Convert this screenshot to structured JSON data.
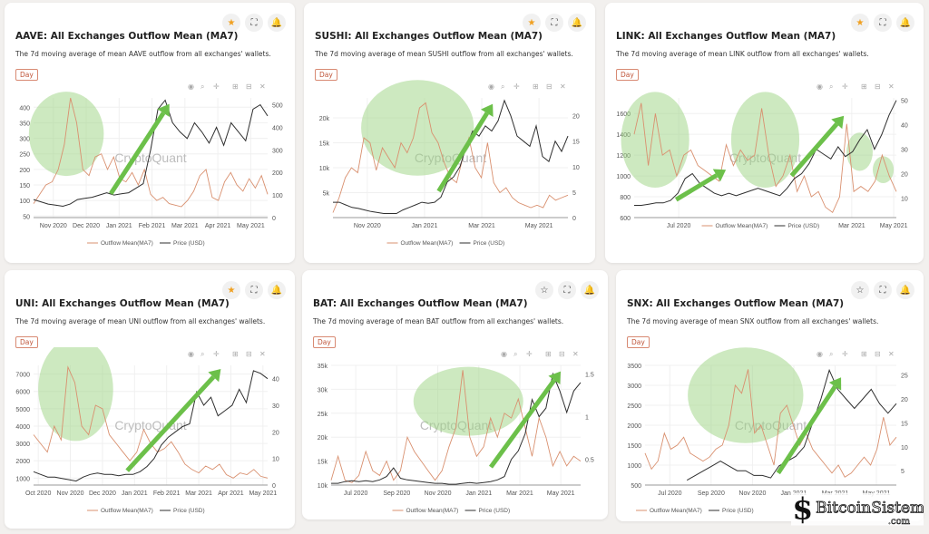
{
  "ui": {
    "card_icons": [
      "star-icon",
      "fullscreen-icon",
      "bell-icon"
    ],
    "plot_toolbar": [
      "camera-icon",
      "zoom-icon",
      "pan-icon",
      "zoom-in-icon",
      "zoom-out-icon",
      "reset-icon"
    ]
  },
  "colors": {
    "outflow": "#d9906f",
    "price": "#2f2f2f",
    "highlight": "#9bd482",
    "arrow": "#6cc04a",
    "star_active": "#f0a020"
  },
  "watermark": "CryptoQuant",
  "logo": {
    "name": "BitcoinSistemi",
    "suffix": ".com"
  },
  "chart_data": [
    {
      "type": "line",
      "title": "AAVE: All Exchanges Outflow Mean (MA7)",
      "subtitle": "The 7d moving average of mean AAVE outflow from all exchanges' wallets.",
      "period": "Day",
      "star_active": true,
      "legend": [
        "Outflow Mean(MA7)",
        "Price (USD)"
      ],
      "x_ticks": [
        "Nov 2020",
        "Dec 2020",
        "Jan 2021",
        "Feb 2021",
        "Mar 2021",
        "Apr 2021",
        "May 2021"
      ],
      "y_left_ticks": [
        50,
        100,
        150,
        200,
        250,
        300,
        350,
        400
      ],
      "ylim_left": [
        45,
        430
      ],
      "y_right_ticks": [
        0,
        100,
        200,
        300,
        400,
        500
      ],
      "ylim_right": [
        0,
        530
      ],
      "series": [
        {
          "name": "Outflow Mean(MA7)",
          "values": [
            90,
            120,
            150,
            160,
            200,
            280,
            430,
            350,
            200,
            180,
            240,
            250,
            200,
            240,
            170,
            160,
            190,
            150,
            200,
            120,
            100,
            110,
            90,
            85,
            80,
            100,
            130,
            180,
            200,
            110,
            100,
            160,
            190,
            150,
            130,
            170,
            140,
            180,
            120
          ]
        },
        {
          "name": "Price (USD)",
          "values": [
            80,
            70,
            60,
            55,
            50,
            60,
            80,
            85,
            90,
            100,
            110,
            100,
            105,
            110,
            130,
            150,
            300,
            480,
            520,
            420,
            380,
            350,
            420,
            380,
            330,
            400,
            320,
            420,
            380,
            340,
            480,
            500,
            450
          ]
        }
      ]
    },
    {
      "type": "line",
      "title": "SUSHI: All Exchanges Outflow Mean (MA7)",
      "subtitle": "The 7d moving average of mean SUSHI outflow from all exchanges' wallets.",
      "period": "Day",
      "star_active": true,
      "legend": [
        "Outflow Mean(MA7)",
        "Price (USD)"
      ],
      "x_ticks": [
        "Nov 2020",
        "Jan 2021",
        "Mar 2021",
        "May 2021"
      ],
      "y_left_ticks": [
        "5k",
        "10k",
        "15k",
        "20k"
      ],
      "y_left_values": [
        5000,
        10000,
        15000,
        20000
      ],
      "ylim_left": [
        0,
        24000
      ],
      "y_right_ticks": [
        0,
        5,
        10,
        15,
        20
      ],
      "ylim_right": [
        0,
        23.5
      ],
      "series": [
        {
          "name": "Outflow Mean(MA7)",
          "values": [
            1000,
            4000,
            8000,
            10000,
            9000,
            16000,
            15000,
            9500,
            14000,
            12000,
            10000,
            15000,
            13000,
            16000,
            22000,
            23000,
            17000,
            15000,
            11000,
            8000,
            7000,
            12000,
            16000,
            10000,
            8000,
            15000,
            7000,
            5000,
            6000,
            4000,
            3000,
            2500,
            2000,
            2500,
            2000,
            4500,
            3500,
            4000,
            4500
          ]
        },
        {
          "name": "Price (USD)",
          "values": [
            3,
            3,
            2.5,
            2,
            1.8,
            1.5,
            1.2,
            1,
            0.8,
            0.8,
            0.8,
            1.5,
            2,
            2.5,
            3,
            2.8,
            3,
            4,
            7,
            8,
            10,
            14,
            17,
            16,
            18,
            17,
            19,
            23,
            20,
            16,
            15,
            14,
            18,
            12,
            11,
            15,
            13,
            16
          ]
        }
      ]
    },
    {
      "type": "line",
      "title": "LINK: All Exchanges Outflow Mean (MA7)",
      "subtitle": "The 7d moving average of mean LINK outflow from all exchanges' wallets.",
      "period": "Day",
      "star_active": true,
      "legend": [
        "Outflow Mean(MA7)",
        "Price (USD)"
      ],
      "x_ticks": [
        "Jul 2020",
        "Mar 2021",
        "May 2021"
      ],
      "x_tick_pos": [
        0.17,
        0.83,
        0.99
      ],
      "y_left_ticks": [
        600,
        800,
        1000,
        1200,
        1400,
        1600
      ],
      "ylim_left": [
        600,
        1750
      ],
      "y_right_ticks": [
        10,
        20,
        30,
        40,
        50
      ],
      "ylim_right": [
        2,
        51
      ],
      "series": [
        {
          "name": "Outflow Mean(MA7)",
          "values": [
            1400,
            1700,
            1100,
            1600,
            1200,
            1250,
            1000,
            1200,
            1250,
            1100,
            1050,
            1000,
            950,
            1300,
            1100,
            1250,
            1150,
            1200,
            1650,
            1200,
            900,
            1000,
            1200,
            850,
            1000,
            800,
            850,
            700,
            650,
            800,
            1500,
            850,
            900,
            850,
            950,
            1200,
            1000,
            850
          ]
        },
        {
          "name": "Price (USD)",
          "values": [
            7,
            7,
            7.5,
            8,
            8,
            9,
            12,
            18,
            20,
            16,
            14,
            12,
            11,
            12,
            11,
            12,
            13,
            14,
            13,
            12,
            11,
            14,
            18,
            20,
            24,
            30,
            28,
            26,
            31,
            27,
            29,
            34,
            38,
            30,
            36,
            44,
            50
          ]
        }
      ]
    },
    {
      "type": "line",
      "title": "UNI: All Exchanges Outflow Mean (MA7)",
      "subtitle": "The 7d moving average of mean UNI outflow from all exchanges' wallets.",
      "period": "Day",
      "star_active": true,
      "legend": [
        "Outflow Mean(MA7)",
        "Price (USD)"
      ],
      "x_ticks": [
        "Oct 2020",
        "Nov 2020",
        "Dec 2020",
        "Jan 2021",
        "Feb 2021",
        "Mar 2021",
        "Apr 2021",
        "May 2021"
      ],
      "y_left_ticks": [
        1000,
        2000,
        3000,
        4000,
        5000,
        6000,
        7000
      ],
      "ylim_left": [
        600,
        7500
      ],
      "y_right_ticks": [
        0,
        10,
        20,
        30,
        40
      ],
      "ylim_right": [
        0,
        45
      ],
      "series": [
        {
          "name": "Outflow Mean(MA7)",
          "values": [
            3500,
            3000,
            2500,
            4000,
            3200,
            7400,
            6500,
            4000,
            3500,
            5200,
            5000,
            3500,
            3000,
            2500,
            2000,
            2500,
            3800,
            3000,
            2500,
            2700,
            3100,
            2500,
            1800,
            1500,
            1300,
            1700,
            1500,
            1800,
            1200,
            1000,
            1300,
            1200,
            1500,
            1100,
            1000
          ]
        },
        {
          "name": "Price (USD)",
          "values": [
            5,
            4,
            3,
            3,
            2.5,
            2,
            1.5,
            3,
            4,
            4.5,
            4,
            4,
            3.5,
            4,
            4,
            5,
            7,
            10,
            15,
            18,
            20,
            22,
            23,
            35,
            30,
            33,
            26,
            28,
            30,
            36,
            31,
            43,
            42,
            40
          ]
        }
      ]
    },
    {
      "type": "line",
      "title": "BAT: All Exchanges Outflow Mean (MA7)",
      "subtitle": "The 7d moving average of mean BAT outflow from all exchanges' wallets.",
      "period": "Day",
      "star_active": false,
      "legend": [
        "Outflow Mean(MA7)",
        "Price (USD)"
      ],
      "x_ticks": [
        "Jul 2020",
        "Sep 2020",
        "Nov 2020",
        "Jan 2021",
        "Mar 2021",
        "May 2021"
      ],
      "y_left_ticks": [
        "10k",
        "15k",
        "20k",
        "25k",
        "30k",
        "35k"
      ],
      "y_left_values": [
        10000,
        15000,
        20000,
        25000,
        30000,
        35000
      ],
      "ylim_left": [
        10000,
        35000
      ],
      "y_right_ticks": [
        0.5,
        1,
        1.5
      ],
      "ylim_right": [
        0.2,
        1.6
      ],
      "series": [
        {
          "name": "Outflow Mean(MA7)",
          "values": [
            11000,
            16000,
            11000,
            10500,
            12000,
            17000,
            13000,
            12000,
            15000,
            11000,
            13000,
            20000,
            17000,
            15000,
            13000,
            11000,
            13000,
            18000,
            22000,
            34000,
            20000,
            16000,
            18000,
            24000,
            20000,
            25000,
            24000,
            28000,
            22000,
            16000,
            24000,
            20000,
            14000,
            17000,
            14000,
            16000,
            15000
          ]
        },
        {
          "name": "Price (USD)",
          "values": [
            0.22,
            0.22,
            0.24,
            0.25,
            0.24,
            0.25,
            0.24,
            0.26,
            0.3,
            0.4,
            0.28,
            0.26,
            0.25,
            0.24,
            0.23,
            0.22,
            0.22,
            0.21,
            0.21,
            0.22,
            0.23,
            0.22,
            0.23,
            0.24,
            0.26,
            0.3,
            0.5,
            0.6,
            0.8,
            1.2,
            1.0,
            1.1,
            1.5,
            1.3,
            1.05,
            1.3,
            1.4
          ]
        }
      ]
    },
    {
      "type": "line",
      "title": "SNX: All Exchanges Outflow Mean (MA7)",
      "subtitle": "The 7d moving average of mean SNX outflow from all exchanges' wallets.",
      "period": "Day",
      "star_active": false,
      "legend": [
        "Outflow Mean(MA7)",
        "Price (USD)"
      ],
      "x_ticks": [
        "Jul 2020",
        "Sep 2020",
        "Nov 2020",
        "Jan 2021",
        "Mar 2021",
        "May 2021"
      ],
      "y_left_ticks": [
        500,
        1000,
        1500,
        2000,
        2500,
        3000,
        3500
      ],
      "ylim_left": [
        500,
        3500
      ],
      "y_right_ticks": [
        5,
        10,
        15,
        20,
        25
      ],
      "ylim_right": [
        2,
        27
      ],
      "series": [
        {
          "name": "Outflow Mean(MA7)",
          "values": [
            1300,
            900,
            1100,
            1800,
            1400,
            1500,
            1700,
            1300,
            1200,
            1100,
            1200,
            1400,
            1500,
            2000,
            3000,
            2800,
            3400,
            1800,
            2000,
            1500,
            1000,
            2300,
            2500,
            2000,
            1500,
            1800,
            1400,
            1200,
            1000,
            800,
            1000,
            700,
            800,
            1000,
            1200,
            1000,
            1400,
            2200,
            1500,
            1700
          ]
        },
        {
          "name": "Price (USD)",
          "values": [
            null,
            null,
            null,
            null,
            null,
            3,
            4,
            5,
            6,
            7,
            6,
            5,
            5,
            4,
            4,
            3.5,
            6,
            7,
            8,
            10,
            15,
            20,
            26,
            22,
            20,
            18,
            20,
            22,
            19,
            17,
            19
          ]
        }
      ]
    }
  ]
}
